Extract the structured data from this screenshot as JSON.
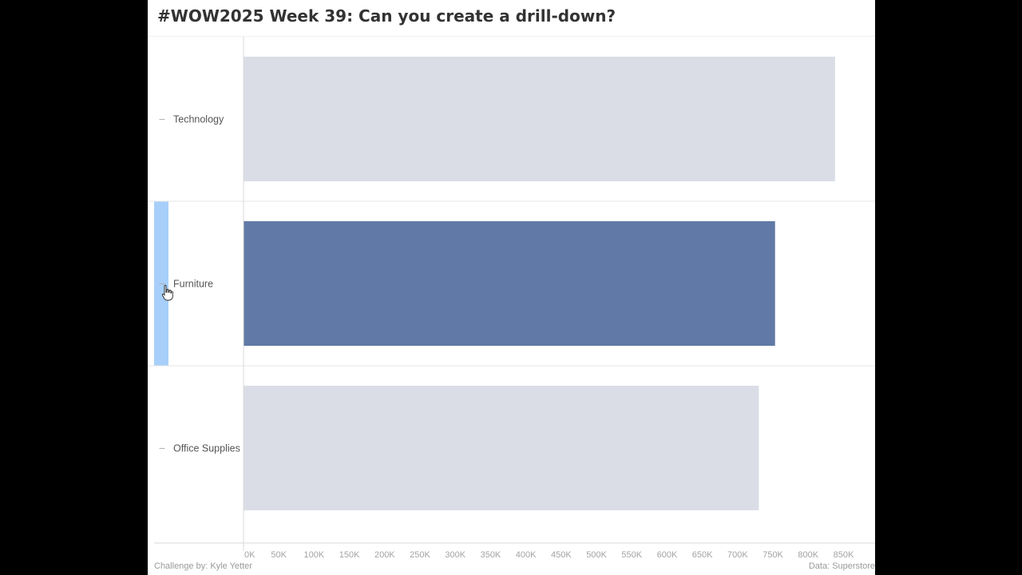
{
  "title": "#WOW2025 Week 39: Can you create a drill-down?",
  "footer": {
    "left": "Challenge by: Kyle Yetter",
    "right": "Data: Superstore"
  },
  "colors": {
    "bar_default": "#dadde6",
    "bar_selected": "#6079a6",
    "row_highlight": "#a7cffa",
    "gridline": "#e6e6e6",
    "axis": "#d9d9d9"
  },
  "chart_data": {
    "type": "bar",
    "orientation": "horizontal",
    "categories": [
      "Technology",
      "Furniture",
      "Office Supplies"
    ],
    "values": [
      838000,
      753000,
      730000
    ],
    "selected": "Furniture",
    "row_toggle_icon": "minus-icon",
    "xlim": [
      0,
      880000
    ],
    "xticks": [
      0,
      50000,
      100000,
      150000,
      200000,
      250000,
      300000,
      350000,
      400000,
      450000,
      500000,
      550000,
      600000,
      650000,
      700000,
      750000,
      800000,
      850000
    ],
    "xtick_labels": [
      "0K",
      "50K",
      "100K",
      "150K",
      "200K",
      "250K",
      "300K",
      "350K",
      "400K",
      "450K",
      "500K",
      "550K",
      "600K",
      "650K",
      "700K",
      "750K",
      "800K",
      "850K"
    ],
    "grid": false,
    "legend": "none"
  }
}
